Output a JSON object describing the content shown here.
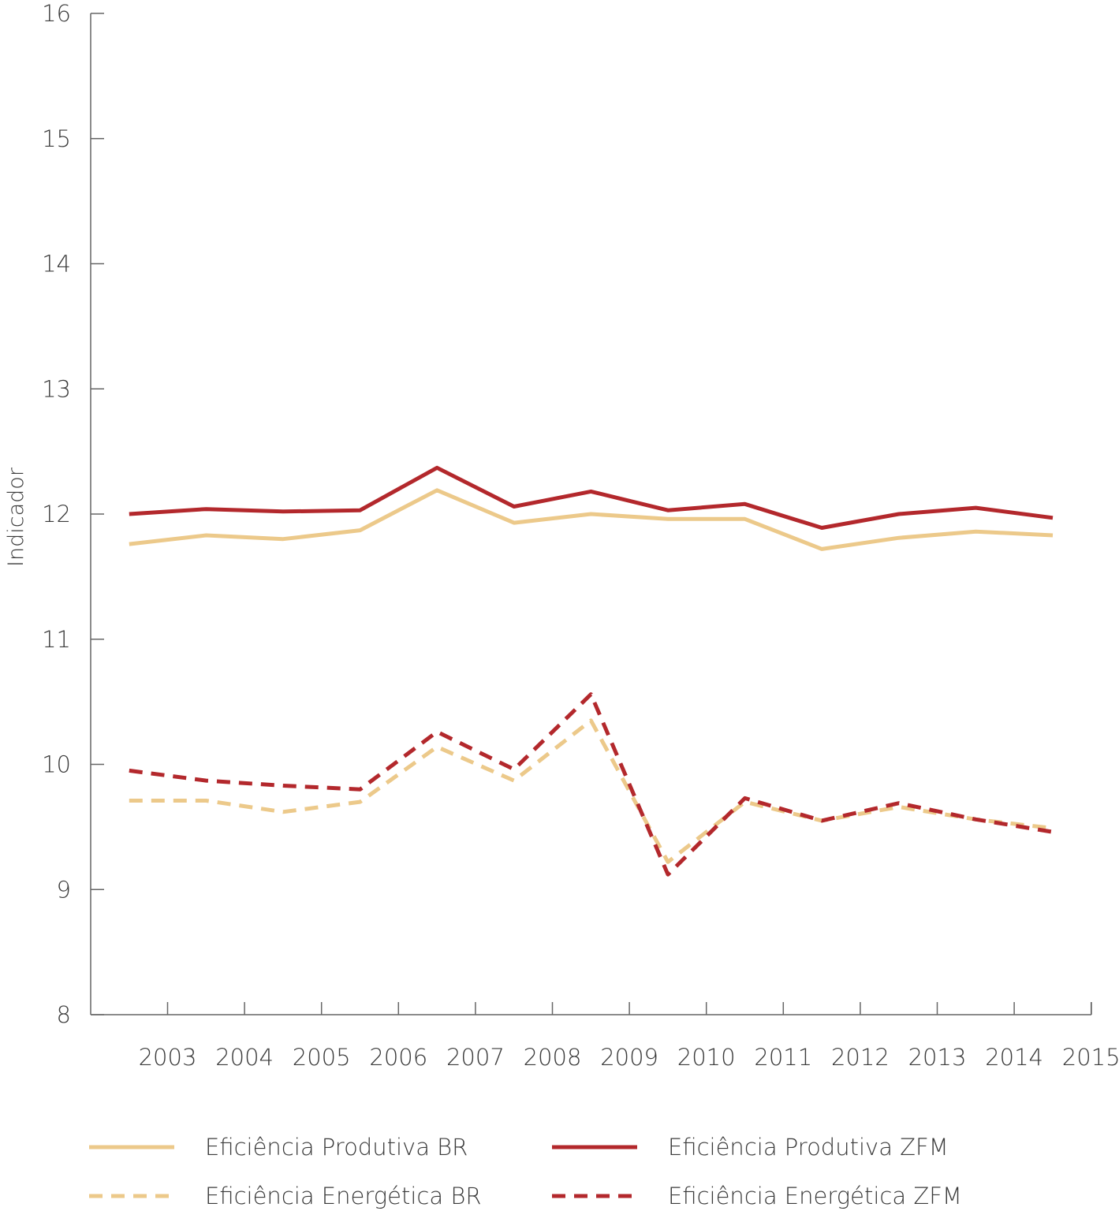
{
  "chart_data": {
    "type": "line",
    "title": "",
    "xlabel": "",
    "ylabel": "Indicador",
    "ylim": [
      8,
      16
    ],
    "yticks": [
      "8",
      "9",
      "10",
      "11",
      "12",
      "13",
      "14",
      "15",
      "16"
    ],
    "xtick_labels": [
      "2003",
      "2004",
      "2005",
      "2006",
      "2007",
      "2008",
      "2009",
      "2010",
      "2011",
      "2012",
      "2013",
      "2014",
      "2015"
    ],
    "grid": false,
    "legend_position": "bottom",
    "series": [
      {
        "name": "Eficiência Produtiva BR",
        "color": "#ecc98a",
        "dash": "solid",
        "values": [
          11.76,
          11.83,
          11.8,
          11.87,
          12.19,
          11.93,
          12.0,
          11.96,
          11.96,
          11.72,
          11.81,
          11.86,
          11.83
        ]
      },
      {
        "name": "Eficiência Produtiva ZFM",
        "color": "#b3282c",
        "dash": "solid",
        "values": [
          12.0,
          12.04,
          12.02,
          12.03,
          12.37,
          12.06,
          12.18,
          12.03,
          12.08,
          11.89,
          12.0,
          12.05,
          11.97
        ]
      },
      {
        "name": "Eficiência Energética BR",
        "color": "#ecc98a",
        "dash": "dashed",
        "values": [
          9.71,
          9.71,
          9.62,
          9.7,
          10.14,
          9.87,
          10.35,
          9.22,
          9.7,
          9.55,
          9.66,
          9.56,
          9.49
        ]
      },
      {
        "name": "Eficiência Energética ZFM",
        "color": "#b3282c",
        "dash": "dashed",
        "values": [
          9.95,
          9.87,
          9.83,
          9.8,
          10.26,
          9.96,
          10.56,
          9.12,
          9.73,
          9.55,
          9.69,
          9.56,
          9.46
        ]
      }
    ]
  }
}
